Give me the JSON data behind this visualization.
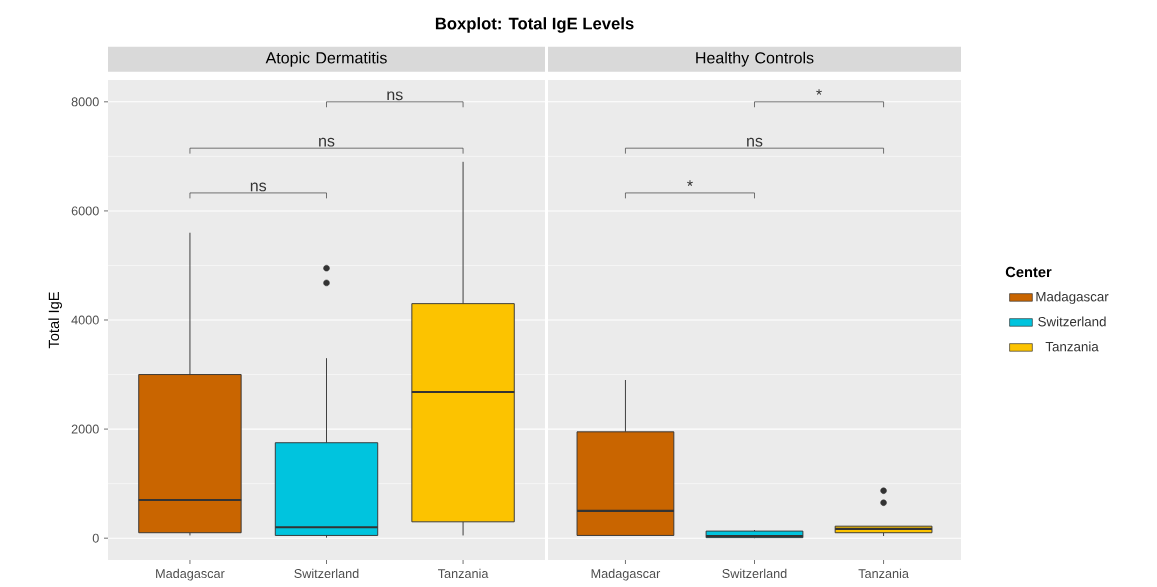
{
  "chart_data": [
    {
      "type": "box",
      "title": "Boxplot: Total IgE Levels",
      "subtitle": "Atopic Dermatitis",
      "ylabel": "Total IgE",
      "categories": [
        "Madagascar",
        "Switzerland",
        "Tanzania"
      ],
      "series": [
        {
          "color": "#c96500",
          "boxes": [
            {
              "low": 50,
              "q1": 100,
              "median": 700,
              "q3": 3000,
              "high": 5600
            },
            null,
            null
          ]
        },
        {
          "color": "#00c4de",
          "boxes": [
            null,
            {
              "low": 10,
              "q1": 50,
              "median": 200,
              "q3": 1750,
              "high": 3300,
              "outliers": [
                4950,
                4680
              ]
            },
            null
          ]
        },
        {
          "color": "#fcc300",
          "boxes": [
            null,
            null,
            {
              "low": 50,
              "q1": 300,
              "median": 2680,
              "q3": 4300,
              "high": 6900
            }
          ]
        }
      ],
      "ylim": [
        -400,
        8400
      ],
      "yticks": [
        0,
        2000,
        4000,
        6000,
        8000
      ],
      "grid": "y",
      "annotations": [
        "ns",
        "ns",
        "ns"
      ]
    },
    {
      "type": "box",
      "subtitle": "Healthy Controls",
      "categories": [
        "Madagascar",
        "Switzerland",
        "Tanzania"
      ],
      "series": [
        {
          "name": "Madagascar",
          "color": "#c96500",
          "boxes": [
            {
              "low": 50,
              "q1": 50,
              "median": 500,
              "q3": 1950,
              "high": 2900
            },
            null,
            null
          ]
        },
        {
          "name": "Switzerland",
          "color": "#00c4de",
          "boxes": [
            null,
            {
              "low": 0,
              "q1": 10,
              "median": 40,
              "q3": 130,
              "high": 150
            },
            null
          ]
        },
        {
          "name": "Tanzania",
          "color": "#fcc300",
          "boxes": [
            null,
            null,
            {
              "low": 40,
              "q1": 100,
              "median": 170,
              "q3": 220,
              "high": 220,
              "outliers": [
                870,
                650
              ]
            }
          ]
        }
      ],
      "ylim": [
        -400,
        8400
      ],
      "yticks": [
        0,
        2000,
        4000,
        6000,
        8000
      ],
      "grid": "y",
      "tick_labels": "x",
      "annotations": [
        "*",
        "ns",
        "*"
      ],
      "legend": "right",
      "legend_title": "Center"
    }
  ]
}
